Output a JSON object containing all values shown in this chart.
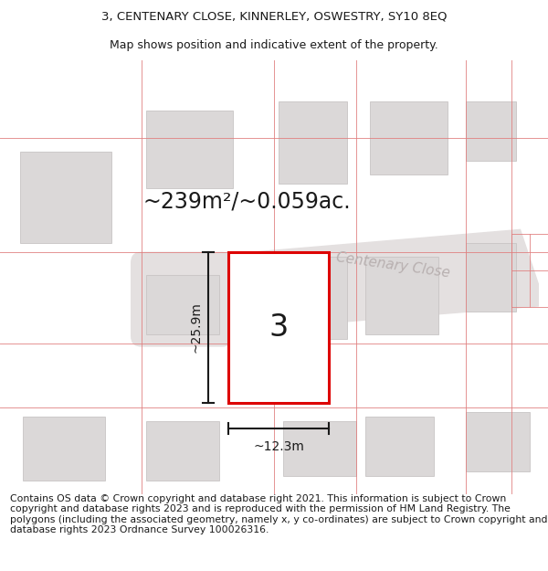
{
  "title_line1": "3, CENTENARY CLOSE, KINNERLEY, OSWESTRY, SY10 8EQ",
  "title_line2": "Map shows position and indicative extent of the property.",
  "footer_text": "Contains OS data © Crown copyright and database right 2021. This information is subject to Crown copyright and database rights 2023 and is reproduced with the permission of HM Land Registry. The polygons (including the associated geometry, namely x, y co-ordinates) are subject to Crown copyright and database rights 2023 Ordnance Survey 100026316.",
  "area_label": "~239m²/~0.059ac.",
  "width_label": "~12.3m",
  "height_label": "~25.9m",
  "plot_number": "3",
  "road_label": "Centenary Close",
  "map_bg": "#f2f0f0",
  "plot_edgecolor": "#dd0000",
  "plot_fill": "#ffffff",
  "building_fill": "#dbd8d8",
  "building_edge": "#c8c4c4",
  "road_fill": "#e0dcdc",
  "boundary_color": "#e08080",
  "dim_color": "#1a1a1a",
  "text_color": "#1a1a1a",
  "road_text_color": "#b8b0b0",
  "title_fontsize": 9.5,
  "subtitle_fontsize": 9,
  "footer_fontsize": 7.8,
  "area_fontsize": 17,
  "dim_fontsize": 10,
  "plot_num_fontsize": 24
}
